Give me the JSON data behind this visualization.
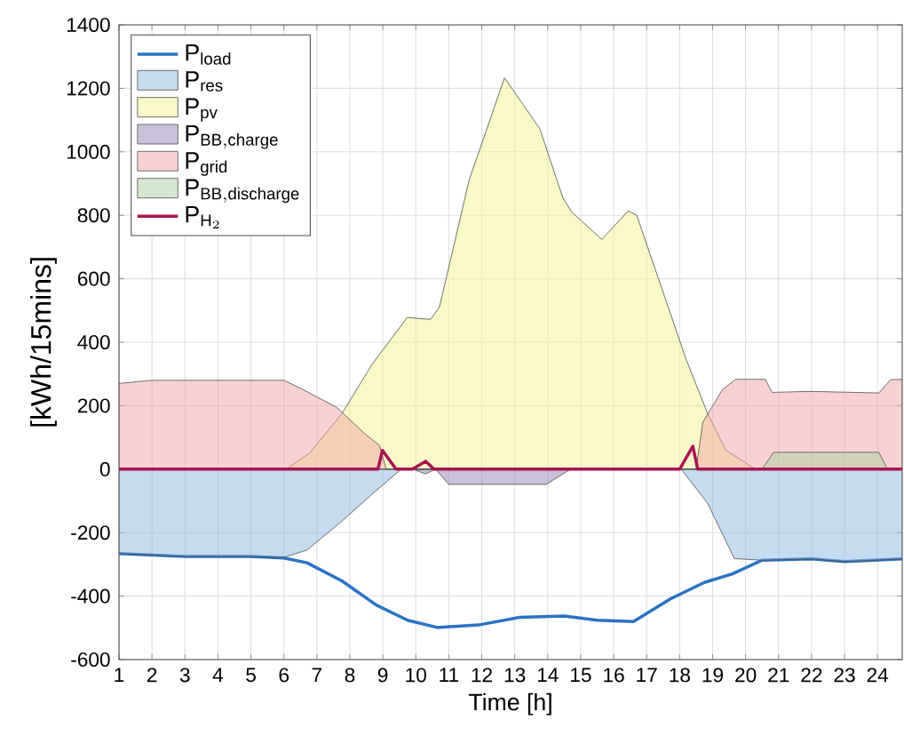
{
  "chart_data": {
    "type": "area",
    "xlabel": "Time [h]",
    "ylabel": "[kWh/15mins]",
    "xlim": [
      1,
      24.75
    ],
    "ylim": [
      -600,
      1400
    ],
    "xticks": [
      1,
      2,
      3,
      4,
      5,
      6,
      7,
      8,
      9,
      10,
      11,
      12,
      13,
      14,
      15,
      16,
      17,
      18,
      19,
      20,
      21,
      22,
      23,
      24
    ],
    "yticks": [
      -600,
      -400,
      -200,
      0,
      200,
      400,
      600,
      800,
      1000,
      1200,
      1400
    ],
    "grid": true,
    "legend": "top left",
    "series": [
      {
        "name": "\\mathrm{P}_{\\mathrm{load}}",
        "type": "line",
        "color": "#2a72c2",
        "x": [
          1,
          3,
          5,
          6,
          6.7,
          7.76,
          8.8,
          9.75,
          10.65,
          11.9,
          13.15,
          14.5,
          15.5,
          16.6,
          17.7,
          18.75,
          19.6,
          20.5,
          22,
          23,
          24.75
        ],
        "values": [
          -266,
          -275,
          -275,
          -280,
          -295,
          -352,
          -428,
          -476,
          -499,
          -491,
          -467,
          -463,
          -476,
          -480,
          -410,
          -357,
          -330,
          -287,
          -283,
          -291,
          -283
        ]
      },
      {
        "name": "\\mathrm{P}_{\\mathrm{res}}",
        "color": "#c4dbf0",
        "x": [
          1,
          3,
          5,
          6,
          6.7,
          7.76,
          8.67,
          9.56,
          18.05,
          18.85,
          19.66,
          20.5,
          22,
          23,
          24.75
        ],
        "values": [
          -266,
          -275,
          -275,
          -278,
          -255,
          -164,
          -79,
          0,
          0,
          -108,
          -282,
          -287,
          -283,
          -291,
          -283
        ]
      },
      {
        "name": "\\mathrm{P}_{\\mathrm{pv}}",
        "color": "#f8f8c8",
        "x": [
          6.07,
          6.8,
          7.76,
          8.67,
          9.74,
          10.45,
          10.72,
          11.62,
          12.69,
          13.76,
          14.46,
          14.73,
          15.64,
          16.44,
          16.7,
          18.2,
          18.85,
          19.4,
          20.3
        ],
        "values": [
          0,
          53,
          175,
          330,
          478,
          472,
          512,
          912,
          1233,
          1073,
          855,
          810,
          724,
          814,
          800,
          345,
          175,
          60,
          0
        ]
      },
      {
        "name": "\\mathrm{P}_{\\mathrm{BB,charge}}",
        "color": "#cbc0da",
        "x": [
          9.9,
          10.3,
          10.6,
          11.0,
          13.95,
          14.7
        ],
        "values": [
          0,
          -15,
          0,
          -48,
          -48,
          0
        ]
      },
      {
        "name": "\\mathrm{P}_{\\mathrm{grid}}",
        "color": "#f8d2d2",
        "x": [
          1,
          2,
          6,
          6.5,
          7.6,
          8.47,
          8.9,
          9.1,
          18.5,
          18.7,
          19.3,
          19.7,
          20.6,
          20.8,
          22,
          24.04,
          24.4,
          24.75
        ],
        "values": [
          270,
          280,
          280,
          255,
          195,
          110,
          75,
          0,
          0,
          147,
          251,
          283,
          283,
          242,
          245,
          240,
          282,
          283
        ]
      },
      {
        "name": "\\mathrm{P}_{\\mathrm{BB,discharge}}",
        "color": "#d5e8cf",
        "x": [
          20.5,
          20.85,
          24.04,
          24.3
        ],
        "values": [
          0,
          53,
          53,
          0
        ]
      },
      {
        "name": "\\mathrm{P}_{\\mathrm{H}_2}",
        "type": "line",
        "color": "#a8134f",
        "x": [
          1,
          8.85,
          8.99,
          9.4,
          9.9,
          10.3,
          10.55,
          18.0,
          18.4,
          18.55,
          24.75
        ],
        "values": [
          0,
          0,
          59,
          0,
          0,
          25,
          0,
          0,
          72,
          0,
          0
        ]
      }
    ]
  }
}
